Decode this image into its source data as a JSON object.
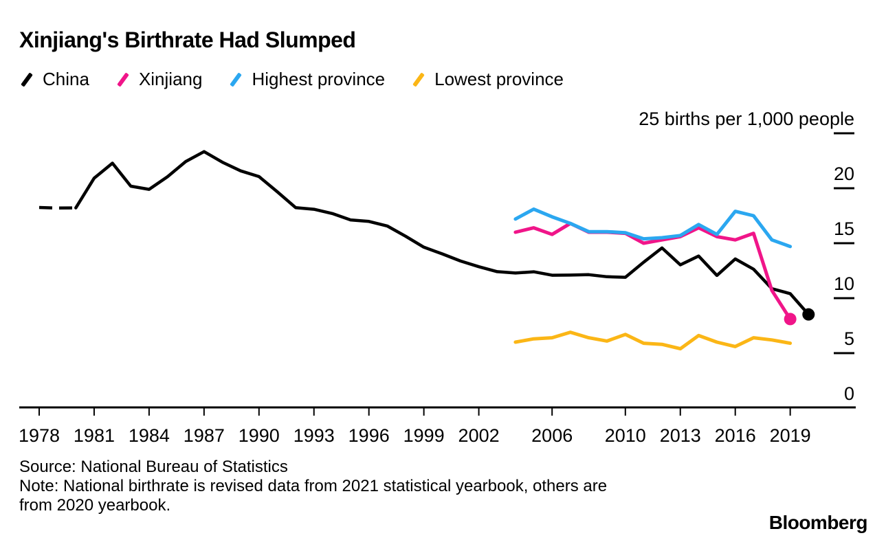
{
  "header": {
    "title": "Xinjiang's Birthrate Had Slumped"
  },
  "legend": {
    "items": [
      {
        "label": "China",
        "color": "#000000"
      },
      {
        "label": "Xinjiang",
        "color": "#f01589"
      },
      {
        "label": "Highest province",
        "color": "#2ba7f0"
      },
      {
        "label": "Lowest province",
        "color": "#fbb616"
      }
    ]
  },
  "footer": {
    "source": "Source: National Bureau of Statistics",
    "note_line_1": "Note: National birthrate is revised data from 2021 statistical yearbook, others are",
    "note_line_2": "from 2020 yearbook.",
    "logo": "Bloomberg"
  },
  "chart_data": {
    "type": "line",
    "title": "Xinjiang's Birthrate Had Slumped",
    "unit_label": "25 births per 1,000 people",
    "ylabel": "births per 1,000 people",
    "ylim": [
      0,
      25
    ],
    "xlim": [
      1977.9,
      2022.5
    ],
    "grid": false,
    "legend_position": "top-left",
    "y_ticks": [
      {
        "value": 25,
        "label": "25 births per 1,000 people",
        "dash": true
      },
      {
        "value": 20,
        "label": "20",
        "dash": true
      },
      {
        "value": 15,
        "label": "15",
        "dash": true
      },
      {
        "value": 10,
        "label": "10",
        "dash": true
      },
      {
        "value": 5,
        "label": "5",
        "dash": true
      },
      {
        "value": 0,
        "label": "0",
        "dash": false
      }
    ],
    "x_ticks": [
      1978,
      1981,
      1984,
      1987,
      1990,
      1993,
      1996,
      1999,
      2002,
      2006,
      2010,
      2013,
      2016,
      2019
    ],
    "series": [
      {
        "name": "Lowest province",
        "color": "#fbb616",
        "line_width": 5,
        "end_dot": false,
        "dash_until_index": 0,
        "years": [
          2004,
          2005,
          2006,
          2007,
          2008,
          2009,
          2010,
          2011,
          2012,
          2013,
          2014,
          2015,
          2016,
          2017,
          2018,
          2019
        ],
        "values": [
          6.0,
          6.3,
          6.4,
          6.9,
          6.4,
          6.1,
          6.7,
          5.9,
          5.8,
          5.4,
          6.6,
          6.0,
          5.6,
          6.4,
          6.2,
          5.9
        ]
      },
      {
        "name": "China",
        "color": "#000000",
        "line_width": 4.5,
        "end_dot": true,
        "dash_until_index": 2,
        "years": [
          1978,
          1979,
          1980,
          1981,
          1982,
          1983,
          1984,
          1985,
          1986,
          1987,
          1988,
          1989,
          1990,
          1991,
          1992,
          1993,
          1994,
          1995,
          1996,
          1997,
          1998,
          1999,
          2000,
          2001,
          2002,
          2003,
          2004,
          2005,
          2006,
          2007,
          2008,
          2009,
          2010,
          2011,
          2012,
          2013,
          2014,
          2015,
          2016,
          2017,
          2018,
          2019,
          2020
        ],
        "values": [
          18.25,
          18.2,
          18.21,
          20.91,
          22.28,
          20.19,
          19.9,
          21.04,
          22.43,
          23.33,
          22.37,
          21.58,
          21.06,
          19.68,
          18.24,
          18.09,
          17.7,
          17.12,
          16.98,
          16.57,
          15.64,
          14.64,
          14.03,
          13.38,
          12.86,
          12.41,
          12.29,
          12.4,
          12.09,
          12.1,
          12.14,
          11.95,
          11.9,
          13.27,
          14.57,
          13.03,
          13.83,
          12.07,
          13.57,
          12.64,
          10.86,
          10.41,
          8.52
        ]
      },
      {
        "name": "Xinjiang",
        "color": "#f01589",
        "line_width": 5,
        "end_dot": true,
        "dash_until_index": 0,
        "years": [
          2004,
          2005,
          2006,
          2007,
          2008,
          2009,
          2010,
          2011,
          2012,
          2013,
          2014,
          2015,
          2016,
          2017,
          2018,
          2019
        ],
        "values": [
          16.0,
          16.4,
          15.8,
          16.8,
          16.0,
          16.0,
          15.9,
          15.0,
          15.3,
          15.6,
          16.4,
          15.6,
          15.3,
          15.9,
          10.7,
          8.1
        ]
      },
      {
        "name": "Highest province",
        "color": "#2ba7f0",
        "line_width": 5,
        "end_dot": false,
        "dash_until_index": 0,
        "years": [
          2004,
          2005,
          2006,
          2007,
          2008,
          2009,
          2010,
          2011,
          2012,
          2013,
          2014,
          2015,
          2016,
          2017,
          2018,
          2019
        ],
        "values": [
          17.2,
          18.1,
          17.4,
          16.8,
          16.05,
          16.05,
          15.95,
          15.4,
          15.5,
          15.7,
          16.7,
          15.8,
          17.9,
          17.5,
          15.3,
          14.7
        ]
      }
    ]
  }
}
